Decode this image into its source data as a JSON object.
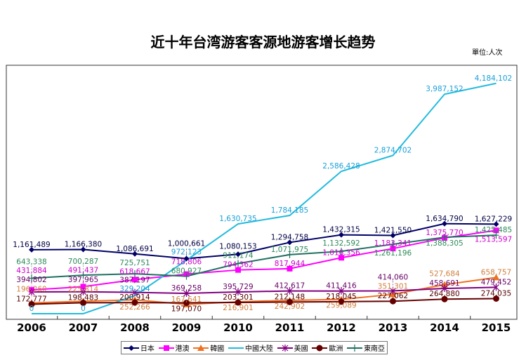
{
  "chart_data": {
    "type": "line",
    "title": "近十年台湾游客客源地游客增长趋势",
    "unit_label": "單位:人次",
    "categories": [
      "2006",
      "2007",
      "2008",
      "2009",
      "2010",
      "2011",
      "2012",
      "2013",
      "2014",
      "2015"
    ],
    "ylim": [
      0,
      4500000
    ],
    "grid": false,
    "legend_position": "bottom",
    "series": [
      {
        "name": "日本",
        "color": "#000066",
        "label_color": "#000044",
        "marker": "diamond",
        "values": [
          1161489,
          1166380,
          1086691,
          1000661,
          1080153,
          1294758,
          1432315,
          1421550,
          1634790,
          1627229
        ],
        "labels": [
          "1,161,489",
          "1,166,380",
          "1,086,691",
          "1,000,661",
          "1,080,153",
          "1,294,758",
          "1,432,315",
          "1,421,550",
          "1,634,790",
          "1,627,229"
        ]
      },
      {
        "name": "港澳",
        "color": "#ff00ff",
        "label_color": "#cc00cc",
        "marker": "square",
        "values": [
          431884,
          491437,
          618667,
          718806,
          794362,
          817944,
          1016356,
          1183341,
          1375770,
          1513597
        ],
        "labels": [
          "431,884",
          "491,437",
          "618,667",
          "718,806",
          "794,362",
          "817,944",
          "1,016,356",
          "1,183,341",
          "1,375,770",
          "1,513,597"
        ]
      },
      {
        "name": "韓國",
        "color": "#f07020",
        "label_color": "#d08040",
        "marker": "triangle",
        "values": [
          196260,
          225814,
          252266,
          167641,
          216901,
          242902,
          259089,
          351301,
          527684,
          658757
        ],
        "labels": [
          "196,260",
          "225,814",
          "252,266",
          "167,641",
          "216,901",
          "242,902",
          "259,089",
          "351,301",
          "527,684",
          "658,757"
        ]
      },
      {
        "name": "中國大陸",
        "color": "#22bbdd",
        "label_color": "#1aa0d8",
        "marker": "none",
        "values": [
          0,
          0,
          329204,
          972123,
          1630735,
          1784185,
          2586428,
          2874702,
          3987152,
          4184102
        ],
        "labels": [
          "0",
          "0",
          "329,204",
          "972,123",
          "1,630,735",
          "1,784,185",
          "2,586,428",
          "2,874,702",
          "3,987,152",
          "4,184,102"
        ]
      },
      {
        "name": "美國",
        "color": "#800080",
        "label_color": "#660066",
        "marker": "star",
        "values": [
          394802,
          397965,
          387197,
          369258,
          395729,
          412617,
          411416,
          414060,
          458691,
          479452
        ],
        "labels": [
          "394,802",
          "397,965",
          "387,197",
          "369,258",
          "395,729",
          "412,617",
          "411,416",
          "414,060",
          "458,691",
          "479,452"
        ]
      },
      {
        "name": "歐洲",
        "color": "#660000",
        "label_color": "#550000",
        "marker": "circle",
        "values": [
          172777,
          198483,
          200914,
          197070,
          203301,
          212148,
          218045,
          227062,
          264880,
          274035
        ],
        "labels": [
          "172,777",
          "198,483",
          "200,914",
          "197,070",
          "203,301",
          "212,148",
          "218,045",
          "227,062",
          "264,880",
          "274,035"
        ]
      },
      {
        "name": "東南亞",
        "color": "#207060",
        "label_color": "#2e8a5a",
        "marker": "plus",
        "values": [
          643338,
          700287,
          725751,
          680927,
          911174,
          1071975,
          1132592,
          1261196,
          1388305,
          1425485
        ],
        "labels": [
          "643,338",
          "700,287",
          "725,751",
          "680,927",
          "911,174",
          "1,071,975",
          "1,132,592",
          "1,261,196",
          "1,388,305",
          "1,425,485"
        ]
      }
    ]
  }
}
